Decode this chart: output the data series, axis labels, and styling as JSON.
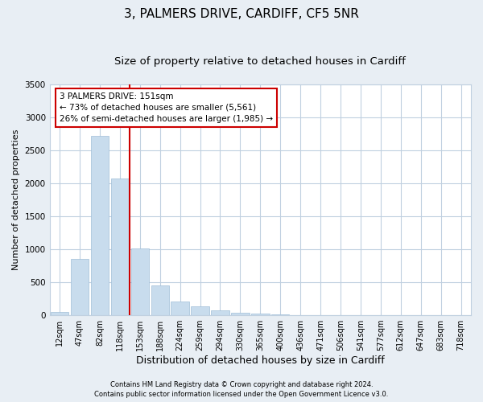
{
  "title1": "3, PALMERS DRIVE, CARDIFF, CF5 5NR",
  "title2": "Size of property relative to detached houses in Cardiff",
  "xlabel": "Distribution of detached houses by size in Cardiff",
  "ylabel": "Number of detached properties",
  "categories": [
    "12sqm",
    "47sqm",
    "82sqm",
    "118sqm",
    "153sqm",
    "188sqm",
    "224sqm",
    "259sqm",
    "294sqm",
    "330sqm",
    "365sqm",
    "400sqm",
    "436sqm",
    "471sqm",
    "506sqm",
    "541sqm",
    "577sqm",
    "612sqm",
    "647sqm",
    "683sqm",
    "718sqm"
  ],
  "values": [
    50,
    850,
    2720,
    2070,
    1010,
    450,
    210,
    130,
    70,
    40,
    25,
    10,
    5,
    2,
    1,
    0,
    0,
    0,
    0,
    0,
    0
  ],
  "bar_color": "#c8dced",
  "bar_edge_color": "#a0bed8",
  "vline_color": "#cc0000",
  "vline_x": 3.5,
  "annotation_line1": "3 PALMERS DRIVE: 151sqm",
  "annotation_line2": "← 73% of detached houses are smaller (5,561)",
  "annotation_line3": "26% of semi-detached houses are larger (1,985) →",
  "annotation_box_color": "#ffffff",
  "annotation_box_edge": "#cc0000",
  "ylim": [
    0,
    3500
  ],
  "yticks": [
    0,
    500,
    1000,
    1500,
    2000,
    2500,
    3000,
    3500
  ],
  "bg_color": "#e8eef4",
  "plot_bg_color": "#ffffff",
  "footer1": "Contains HM Land Registry data © Crown copyright and database right 2024.",
  "footer2": "Contains public sector information licensed under the Open Government Licence v3.0.",
  "grid_color": "#c0d0e0",
  "title_fontsize": 11,
  "subtitle_fontsize": 9.5,
  "tick_fontsize": 7,
  "ylabel_fontsize": 8,
  "xlabel_fontsize": 9
}
